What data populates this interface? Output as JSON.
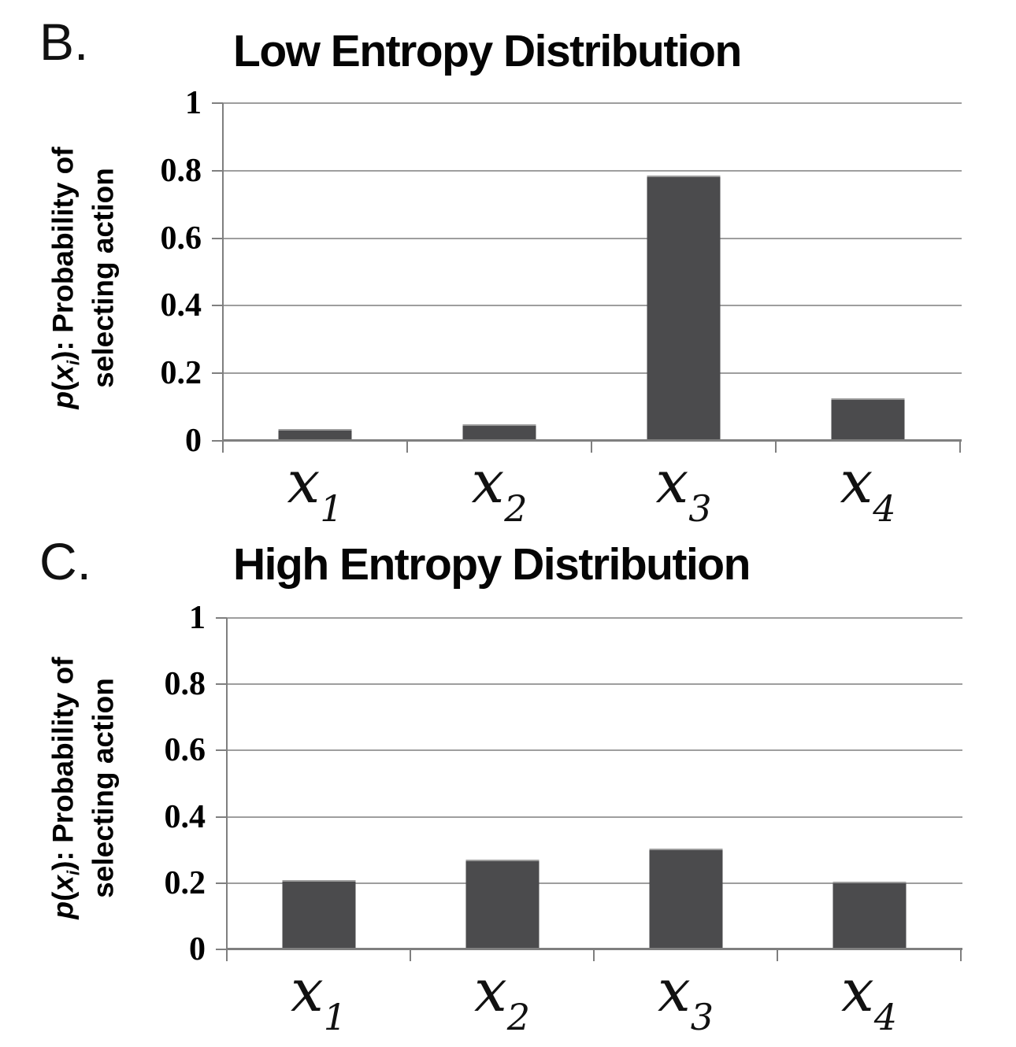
{
  "colors": {
    "bar": "#4b4b4d",
    "gridline": "#9e9e9e",
    "axis": "#7f7f7f",
    "text": "#000000",
    "background": "#ffffff"
  },
  "chart_data": [
    {
      "type": "bar",
      "panel_label": "B.",
      "title": "Low Entropy Distribution",
      "ylabel": "p(xi): Probability of selecting action",
      "ylabel_parts": {
        "p": "p",
        "open": "(",
        "x": "x",
        "sub": "i",
        "rest": "): Probability of",
        "line2": "selecting action"
      },
      "xlabel": "",
      "categories": [
        {
          "base": "x",
          "sub": "1"
        },
        {
          "base": "x",
          "sub": "2"
        },
        {
          "base": "x",
          "sub": "3"
        },
        {
          "base": "x",
          "sub": "4"
        }
      ],
      "values": [
        0.035,
        0.05,
        0.785,
        0.125
      ],
      "yticks": [
        {
          "label": "1",
          "value": 1.0
        },
        {
          "label": "0.8",
          "value": 0.8
        },
        {
          "label": "0.6",
          "value": 0.6
        },
        {
          "label": "0.4",
          "value": 0.4
        },
        {
          "label": "0.2",
          "value": 0.2
        },
        {
          "label": "0",
          "value": 0.0
        }
      ],
      "ylim": [
        0,
        1
      ],
      "grid": true,
      "legend": false
    },
    {
      "type": "bar",
      "panel_label": "C.",
      "title": "High Entropy Distribution",
      "ylabel": "p(xi): Probability of selecting action",
      "ylabel_parts": {
        "p": "p",
        "open": "(",
        "x": "x",
        "sub": "i",
        "rest": "): Probability of",
        "line2": "selecting action"
      },
      "xlabel": "",
      "categories": [
        {
          "base": "x",
          "sub": "1"
        },
        {
          "base": "x",
          "sub": "2"
        },
        {
          "base": "x",
          "sub": "3"
        },
        {
          "base": "x",
          "sub": "4"
        }
      ],
      "values": [
        0.21,
        0.27,
        0.305,
        0.205
      ],
      "yticks": [
        {
          "label": "1",
          "value": 1.0
        },
        {
          "label": "0.8",
          "value": 0.8
        },
        {
          "label": "0.6",
          "value": 0.6
        },
        {
          "label": "0.4",
          "value": 0.4
        },
        {
          "label": "0.2",
          "value": 0.2
        },
        {
          "label": "0",
          "value": 0.0
        }
      ],
      "ylim": [
        0,
        1
      ],
      "grid": true,
      "legend": false
    }
  ]
}
